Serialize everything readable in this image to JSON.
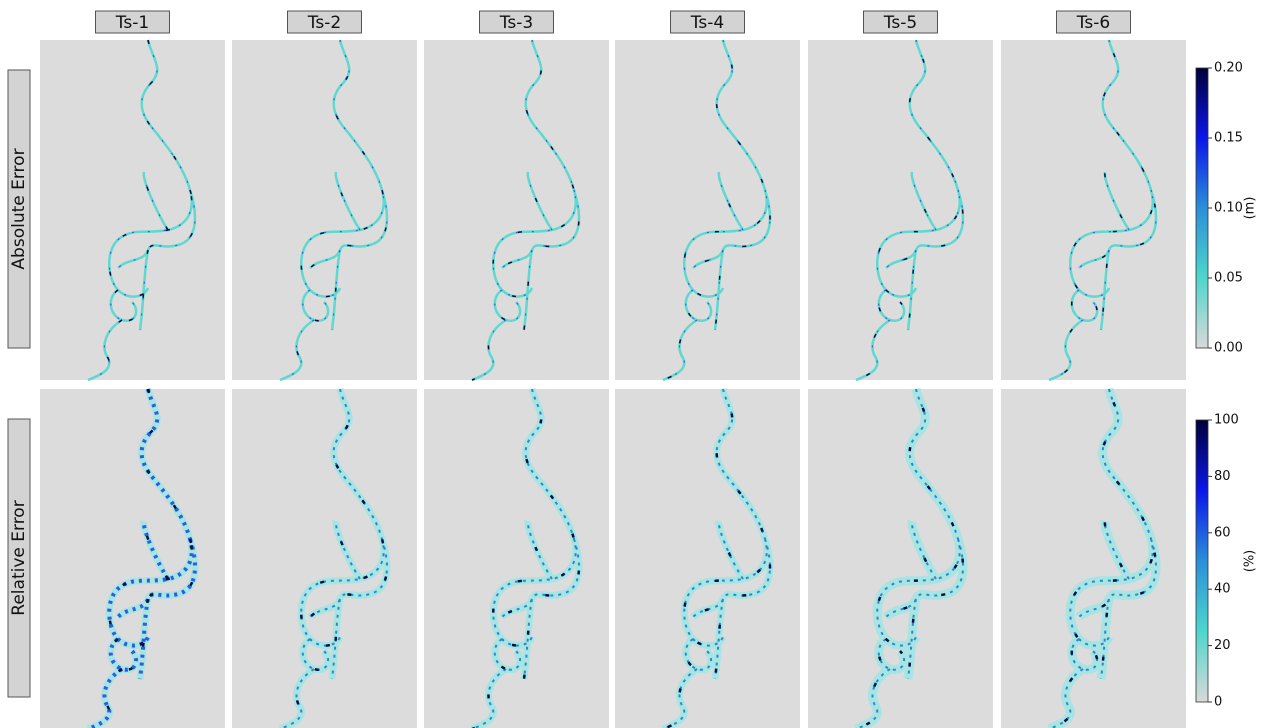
{
  "columns": [
    "Ts-1",
    "Ts-2",
    "Ts-3",
    "Ts-4",
    "Ts-5",
    "Ts-6"
  ],
  "rows": [
    {
      "label": "Absolute Error",
      "unit": "(m)",
      "lim": [
        0,
        0.2
      ],
      "ticks": [
        {
          "value": 0,
          "label": "0.00"
        },
        0.05,
        {
          "value": 0.1,
          "label": "0.10"
        },
        0.15,
        {
          "value": 0.2,
          "label": "0.20"
        }
      ]
    },
    {
      "label": "Relative Error",
      "unit": "(%)",
      "lim": [
        0,
        100
      ],
      "ticks": [
        0,
        20,
        40,
        60,
        80,
        100
      ]
    }
  ],
  "colormap": [
    "#d9d9d9",
    "#4fd6cc",
    "#2a8fd8",
    "#0b16e8",
    "#00003a"
  ]
}
